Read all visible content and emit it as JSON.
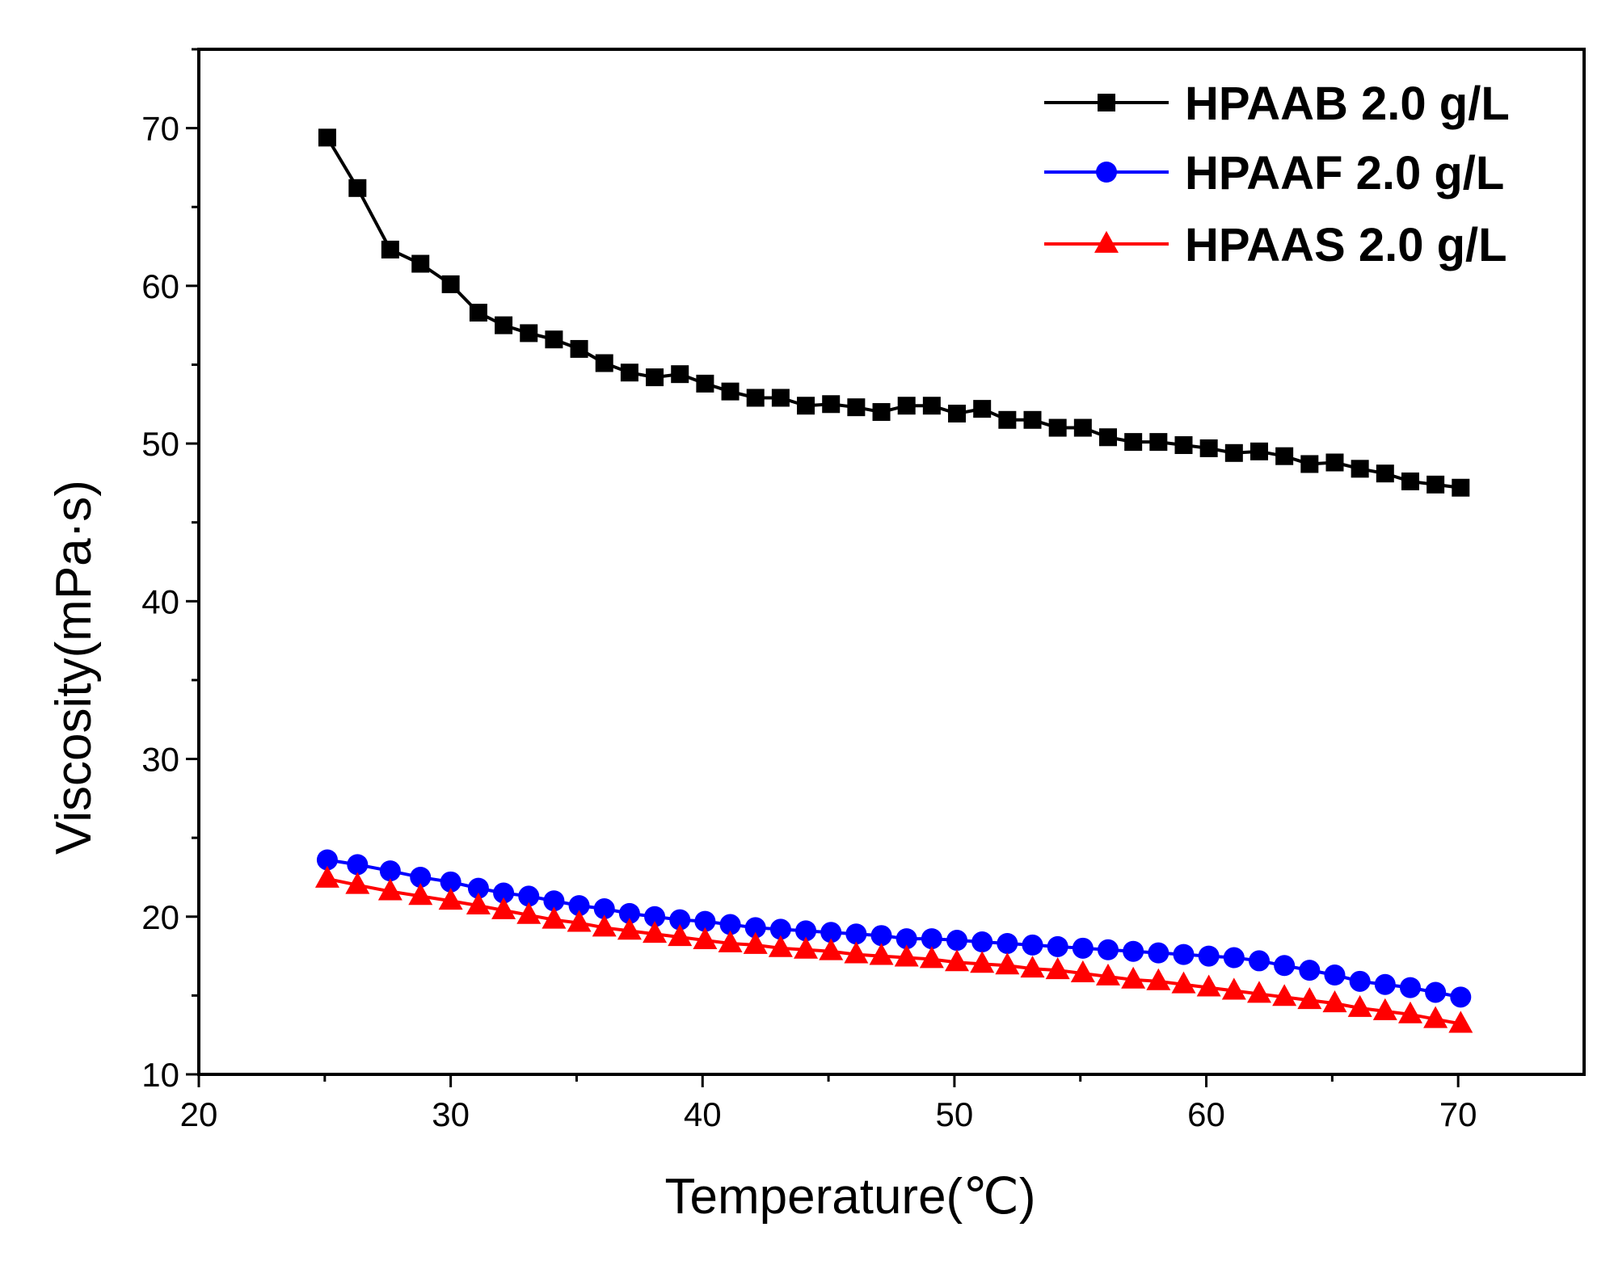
{
  "chart_data": {
    "type": "line",
    "title": "",
    "xlabel": "Temperature(℃)",
    "ylabel": "Viscosity(mPa·s)",
    "xlim": [
      20,
      75
    ],
    "ylim": [
      10,
      75
    ],
    "xticks": [
      20,
      30,
      40,
      50,
      60,
      70
    ],
    "yticks": [
      10,
      20,
      30,
      40,
      50,
      60,
      70
    ],
    "legend_position": "top-right",
    "series": [
      {
        "name": "HPAAB 2.0 g/L",
        "color": "#000000",
        "marker": "square",
        "x": [
          25.1,
          26.3,
          27.6,
          28.8,
          30.0,
          31.1,
          32.1,
          33.1,
          34.1,
          35.1,
          36.1,
          37.1,
          38.1,
          39.1,
          40.1,
          41.1,
          42.1,
          43.1,
          44.1,
          45.1,
          46.1,
          47.1,
          48.1,
          49.1,
          50.1,
          51.1,
          52.1,
          53.1,
          54.1,
          55.1,
          56.1,
          57.1,
          58.1,
          59.1,
          60.1,
          61.1,
          62.1,
          63.1,
          64.1,
          65.1,
          66.1,
          67.1,
          68.1,
          69.1,
          70.1
        ],
        "y": [
          69.4,
          66.2,
          62.3,
          61.4,
          60.1,
          58.3,
          57.5,
          57.0,
          56.6,
          56.0,
          55.1,
          54.5,
          54.2,
          54.4,
          53.8,
          53.3,
          52.9,
          52.9,
          52.4,
          52.5,
          52.3,
          52.0,
          52.4,
          52.4,
          51.9,
          52.2,
          51.5,
          51.5,
          51.0,
          51.0,
          50.4,
          50.1,
          50.1,
          49.9,
          49.7,
          49.4,
          49.5,
          49.2,
          48.7,
          48.8,
          48.4,
          48.1,
          47.6,
          47.4,
          47.2
        ]
      },
      {
        "name": "HPAAF 2.0 g/L",
        "color": "#0000ff",
        "marker": "circle",
        "x": [
          25.1,
          26.3,
          27.6,
          28.8,
          30.0,
          31.1,
          32.1,
          33.1,
          34.1,
          35.1,
          36.1,
          37.1,
          38.1,
          39.1,
          40.1,
          41.1,
          42.1,
          43.1,
          44.1,
          45.1,
          46.1,
          47.1,
          48.1,
          49.1,
          50.1,
          51.1,
          52.1,
          53.1,
          54.1,
          55.1,
          56.1,
          57.1,
          58.1,
          59.1,
          60.1,
          61.1,
          62.1,
          63.1,
          64.1,
          65.1,
          66.1,
          67.1,
          68.1,
          69.1,
          70.1
        ],
        "y": [
          23.6,
          23.3,
          22.9,
          22.5,
          22.2,
          21.8,
          21.5,
          21.3,
          21.0,
          20.7,
          20.5,
          20.2,
          20.0,
          19.8,
          19.7,
          19.5,
          19.3,
          19.2,
          19.1,
          19.0,
          18.9,
          18.8,
          18.6,
          18.6,
          18.5,
          18.4,
          18.3,
          18.2,
          18.1,
          18.0,
          17.9,
          17.8,
          17.7,
          17.6,
          17.5,
          17.4,
          17.2,
          16.9,
          16.6,
          16.3,
          15.9,
          15.7,
          15.5,
          15.2,
          14.9
        ]
      },
      {
        "name": "HPAAS 2.0 g/L",
        "color": "#ff0000",
        "marker": "triangle",
        "x": [
          25.1,
          26.3,
          27.6,
          28.8,
          30.0,
          31.1,
          32.1,
          33.1,
          34.1,
          35.1,
          36.1,
          37.1,
          38.1,
          39.1,
          40.1,
          41.1,
          42.1,
          43.1,
          44.1,
          45.1,
          46.1,
          47.1,
          48.1,
          49.1,
          50.1,
          51.1,
          52.1,
          53.1,
          54.1,
          55.1,
          56.1,
          57.1,
          58.1,
          59.1,
          60.1,
          61.1,
          62.1,
          63.1,
          64.1,
          65.1,
          66.1,
          67.1,
          68.1,
          69.1,
          70.1
        ],
        "y": [
          22.4,
          22.0,
          21.6,
          21.3,
          21.0,
          20.7,
          20.4,
          20.1,
          19.8,
          19.6,
          19.3,
          19.1,
          18.9,
          18.7,
          18.5,
          18.3,
          18.2,
          18.0,
          17.9,
          17.8,
          17.6,
          17.5,
          17.4,
          17.3,
          17.1,
          17.0,
          16.9,
          16.7,
          16.6,
          16.4,
          16.2,
          16.0,
          15.9,
          15.7,
          15.5,
          15.3,
          15.1,
          14.9,
          14.7,
          14.5,
          14.2,
          14.0,
          13.8,
          13.5,
          13.2
        ]
      }
    ]
  }
}
